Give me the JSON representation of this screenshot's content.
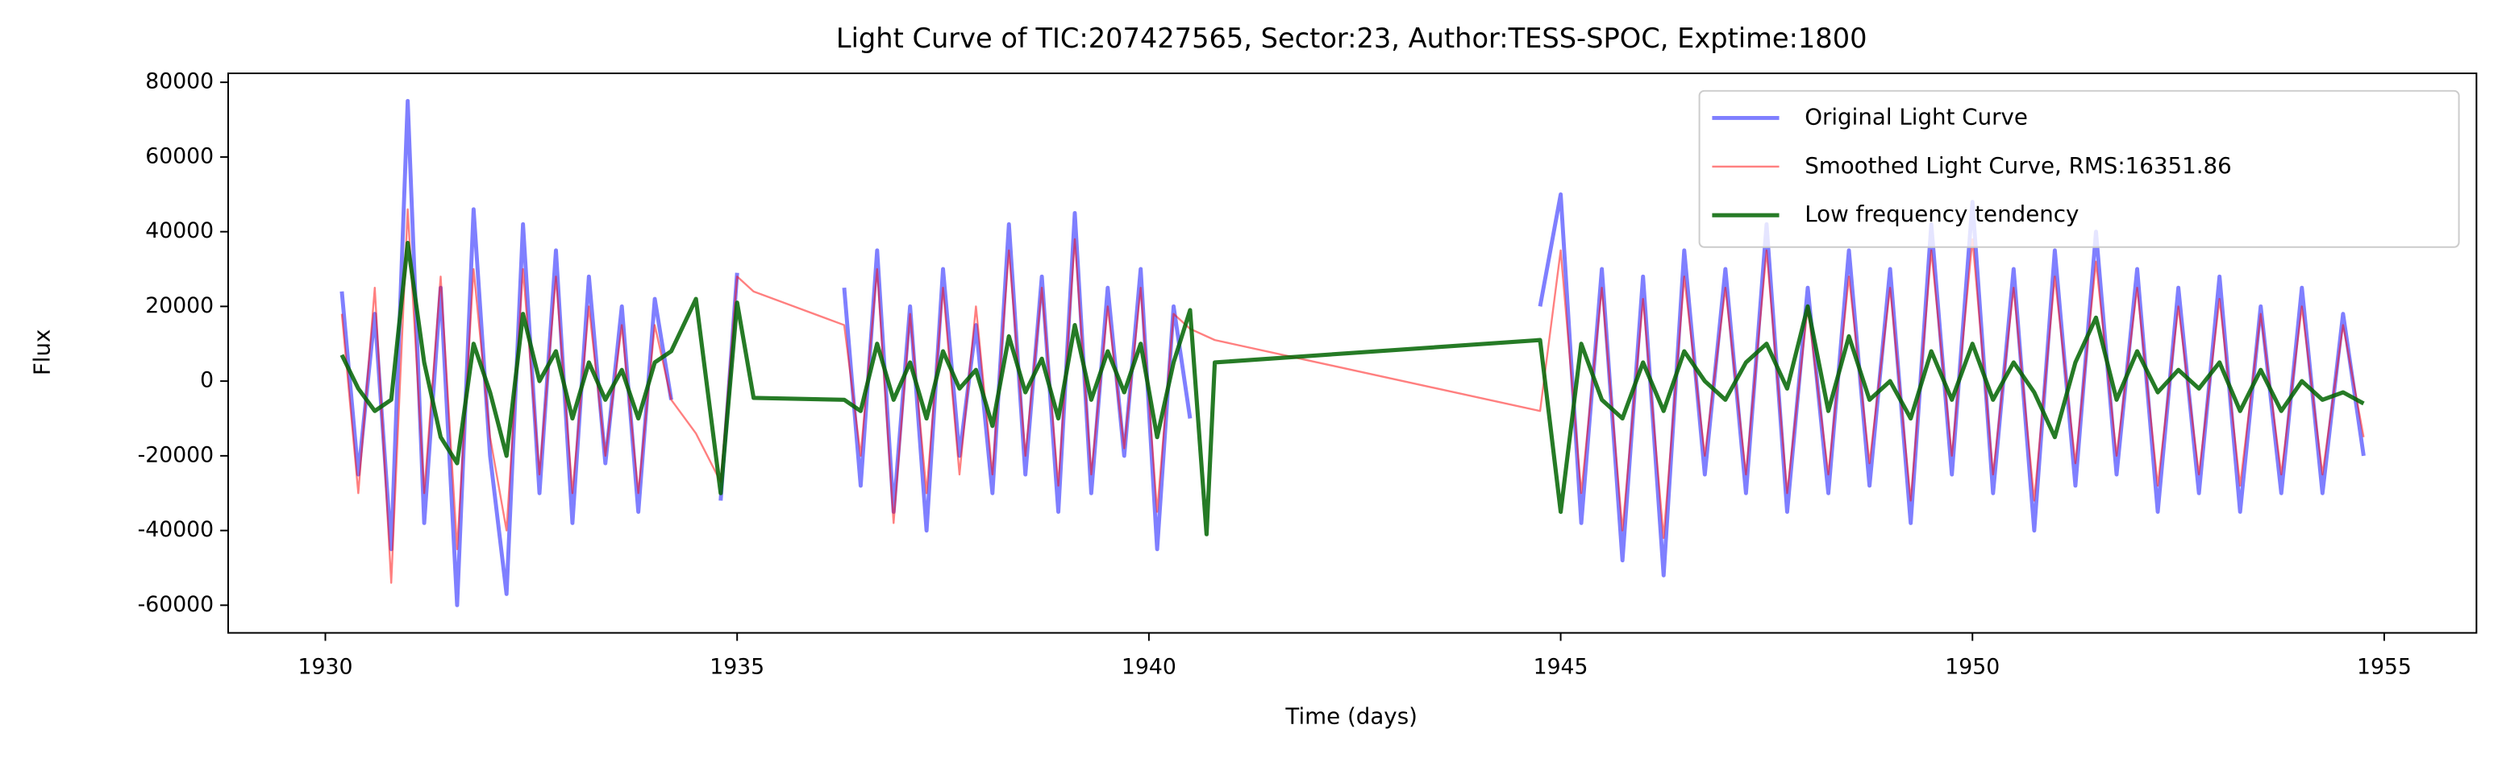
{
  "chart_data": {
    "type": "line",
    "title": "Light Curve of TIC:207427565, Sector:23, Author:TESS-SPOC, Exptime:1800",
    "x_label": "Time (days)",
    "y_label": "Flux",
    "xlim": [
      1928.82,
      1956.12
    ],
    "ylim": [
      -67400,
      82400
    ],
    "xticks": [
      1930,
      1935,
      1940,
      1945,
      1950,
      1955
    ],
    "yticks": [
      -60000,
      -40000,
      -20000,
      0,
      20000,
      40000,
      60000,
      80000
    ],
    "grid": false,
    "legend": "upper right",
    "x": [
      1930.2,
      1930.4,
      1930.6,
      1930.8,
      1931,
      1931.2,
      1931.4,
      1931.6,
      1931.8,
      1932,
      1932.2,
      1932.4,
      1932.6,
      1932.8,
      1933,
      1933.2,
      1933.4,
      1933.6,
      1933.8,
      1934,
      1934.2,
      1934.5,
      1934.8,
      1935,
      1935.2,
      1936.3,
      1936.5,
      1936.7,
      1936.9,
      1937.1,
      1937.3,
      1937.5,
      1937.7,
      1937.9,
      1938.1,
      1938.3,
      1938.5,
      1938.7,
      1938.9,
      1939.1,
      1939.3,
      1939.5,
      1939.7,
      1939.9,
      1940.1,
      1940.3,
      1940.5,
      1940.7,
      1940.8,
      1944.75,
      1945,
      1945.25,
      1945.5,
      1945.75,
      1946,
      1946.25,
      1946.5,
      1946.75,
      1947,
      1947.25,
      1947.5,
      1947.75,
      1948,
      1948.25,
      1948.5,
      1948.75,
      1949,
      1949.25,
      1949.5,
      1949.75,
      1950,
      1950.25,
      1950.5,
      1950.75,
      1951,
      1951.25,
      1951.5,
      1951.75,
      1952,
      1952.25,
      1952.5,
      1952.75,
      1953,
      1953.25,
      1953.5,
      1953.75,
      1954,
      1954.25,
      1954.5,
      1954.75
    ],
    "series": [
      {
        "name": "Original Light Curve",
        "color": "#0000ff",
        "alpha": 0.5,
        "linewidth": 2.5,
        "values": [
          24000,
          -25000,
          18000,
          -45000,
          75000,
          -38000,
          25000,
          -60000,
          46000,
          -20000,
          -57000,
          42000,
          -30000,
          35000,
          -38000,
          28000,
          -22000,
          20000,
          -35000,
          22000,
          -5000,
          null,
          -32000,
          29000,
          null,
          25000,
          -28000,
          35000,
          -35000,
          20000,
          -40000,
          30000,
          -20000,
          15000,
          -30000,
          42000,
          -25000,
          28000,
          -35000,
          45000,
          -30000,
          25000,
          -20000,
          30000,
          -45000,
          20000,
          -10000,
          null,
          null,
          20000,
          50000,
          -38000,
          30000,
          -48000,
          28000,
          -52000,
          35000,
          -25000,
          30000,
          -30000,
          42000,
          -35000,
          25000,
          -30000,
          35000,
          -28000,
          30000,
          -38000,
          42000,
          -25000,
          48000,
          -30000,
          30000,
          -40000,
          35000,
          -28000,
          40000,
          -25000,
          30000,
          -35000,
          25000,
          -30000,
          28000,
          -35000,
          20000,
          -30000,
          25000,
          -30000,
          18000,
          -20000
        ]
      },
      {
        "name": "Smoothed Light Curve, RMS:16351.86",
        "color": "#ff0000",
        "alpha": 0.5,
        "linewidth": 1.2,
        "values": [
          18000,
          -30000,
          25000,
          -54000,
          46000,
          -30000,
          28000,
          -45000,
          30000,
          -15000,
          -40000,
          30000,
          -25000,
          28000,
          -30000,
          20000,
          -20000,
          15000,
          -30000,
          15000,
          -5000,
          -14000,
          -27000,
          28000,
          24000,
          15000,
          -20000,
          30000,
          -38000,
          18000,
          -30000,
          25000,
          -25000,
          20000,
          -25000,
          35000,
          -20000,
          25000,
          -28000,
          38000,
          -25000,
          20000,
          -18000,
          25000,
          -35000,
          18000,
          14000,
          12000,
          11000,
          -8000,
          35000,
          -30000,
          25000,
          -40000,
          22000,
          -42000,
          28000,
          -20000,
          25000,
          -25000,
          35000,
          -30000,
          20000,
          -25000,
          28000,
          -22000,
          25000,
          -32000,
          35000,
          -20000,
          38000,
          -25000,
          25000,
          -32000,
          28000,
          -22000,
          32000,
          -20000,
          25000,
          -28000,
          20000,
          -25000,
          22000,
          -28000,
          18000,
          -25000,
          20000,
          -25000,
          15000,
          -15000
        ]
      },
      {
        "name": "Low frequency tendency",
        "color": "#006400",
        "alpha": 0.85,
        "linewidth": 2.6,
        "values": [
          7000,
          -2000,
          -8000,
          -5000,
          37000,
          5000,
          -15000,
          -22000,
          10000,
          -3000,
          -20000,
          18000,
          0,
          8000,
          -10000,
          5000,
          -5000,
          3000,
          -10000,
          5000,
          8000,
          22000,
          -30000,
          21000,
          -4500,
          -5000,
          -8000,
          10000,
          -5000,
          5000,
          -10000,
          8000,
          -2000,
          3000,
          -12000,
          12000,
          -3000,
          6000,
          -10000,
          15000,
          -5000,
          8000,
          -3000,
          10000,
          -15000,
          5000,
          19000,
          -41000,
          5000,
          11000,
          -35000,
          10000,
          -5000,
          -10000,
          5000,
          -8000,
          8000,
          0,
          -5000,
          5000,
          10000,
          -2000,
          20000,
          -8000,
          12000,
          -5000,
          0,
          -10000,
          8000,
          -5000,
          10000,
          -5000,
          5000,
          -3000,
          -15000,
          5000,
          17000,
          -5000,
          8000,
          -3000,
          3000,
          -2000,
          5000,
          -8000,
          3000,
          -8000,
          0,
          -5000,
          -3000,
          -6000
        ]
      }
    ]
  }
}
